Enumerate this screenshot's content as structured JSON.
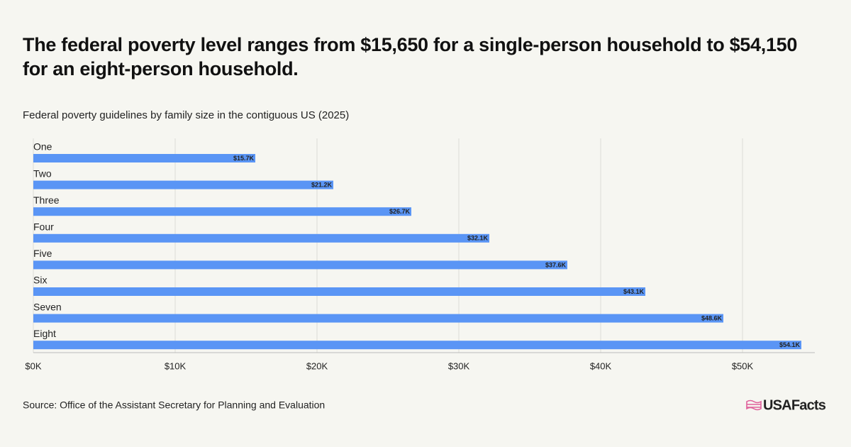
{
  "chart_data": {
    "type": "bar",
    "orientation": "horizontal",
    "title": "The federal poverty level ranges from $15,650 for a single-person household to $54,150 for an eight-person household.",
    "subtitle": "Federal poverty guidelines by family size in the contiguous US (2025)",
    "categories": [
      "One",
      "Two",
      "Three",
      "Four",
      "Five",
      "Six",
      "Seven",
      "Eight"
    ],
    "values": [
      15650,
      21150,
      26650,
      32150,
      37650,
      43150,
      48650,
      54150
    ],
    "value_labels": [
      "$15.7K",
      "$21.2K",
      "$26.7K",
      "$32.1K",
      "$37.6K",
      "$43.1K",
      "$48.6K",
      "$54.1K"
    ],
    "color": "#5a95f5",
    "xlim": [
      0,
      55000
    ],
    "xticks": [
      {
        "value": 0,
        "label": "$0K"
      },
      {
        "value": 10000,
        "label": "$10K"
      },
      {
        "value": 20000,
        "label": "$20K"
      },
      {
        "value": 30000,
        "label": "$30K"
      },
      {
        "value": 40000,
        "label": "$40K"
      },
      {
        "value": 50000,
        "label": "$50K"
      }
    ],
    "grid": true
  },
  "source": "Source: Office of the Assistant Secretary for Planning and Evaluation",
  "brand": "USAFacts"
}
